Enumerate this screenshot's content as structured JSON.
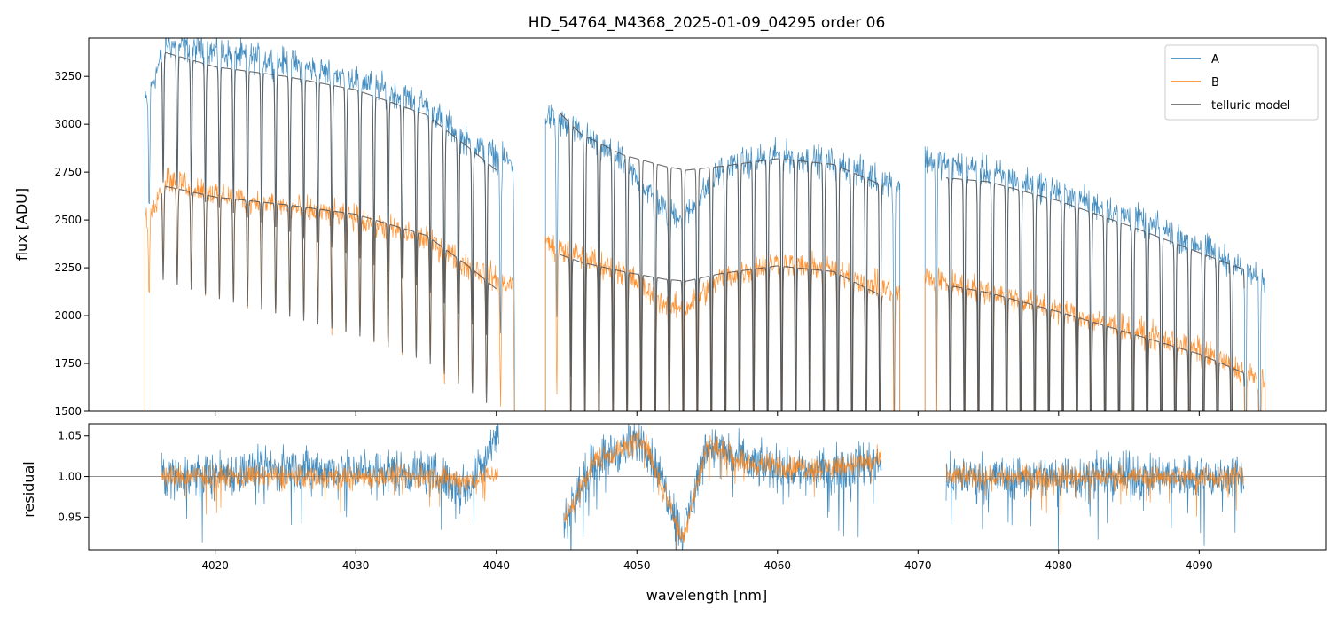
{
  "chart_data": {
    "type": "line",
    "title": "HD_54764_M4368_2025-01-09_04295  order 06",
    "xlabel": "wavelength [nm]",
    "colors": {
      "A": "#1f77b4",
      "B": "#ff7f0e",
      "model": "#555555",
      "ref": "#808080"
    },
    "legend": {
      "placement": "top-right",
      "entries": [
        "A",
        "B",
        "telluric model"
      ]
    },
    "xlim": [
      4011,
      4099
    ],
    "x_ticks": [
      4020,
      4030,
      4040,
      4050,
      4060,
      4070,
      4080,
      4090
    ],
    "x_tick_labels": [
      "4020",
      "4030",
      "4040",
      "4050",
      "4060",
      "4070",
      "4080",
      "4090"
    ],
    "top": {
      "ylabel": "flux [ADU]",
      "ylim": [
        1500,
        3450
      ],
      "y_ticks": [
        1500,
        1750,
        2000,
        2250,
        2500,
        2750,
        3000,
        3250
      ],
      "y_tick_labels": [
        "1500",
        "1750",
        "2000",
        "2250",
        "2500",
        "2750",
        "3000",
        "3250"
      ],
      "segments": [
        [
          4015,
          4041.3
        ],
        [
          4043.5,
          4068.7
        ],
        [
          4070.5,
          4094.7
        ]
      ],
      "absorption_line_spacing_nm": 1.0,
      "series": [
        {
          "name": "A",
          "continuum_x": [
            4015,
            4016.5,
            4020,
            4025,
            4030,
            4035,
            4038,
            4041,
            4043.5,
            4046,
            4049,
            4052,
            4053.5,
            4056,
            4060,
            4064,
            4068.5,
            4070.5,
            4075,
            4080,
            4085,
            4090,
            4094.5
          ],
          "continuum_y": [
            3100,
            3420,
            3380,
            3320,
            3240,
            3100,
            2900,
            2800,
            3050,
            2950,
            2800,
            2550,
            2520,
            2770,
            2840,
            2800,
            2680,
            2820,
            2750,
            2650,
            2520,
            2370,
            2180
          ]
        },
        {
          "name": "B",
          "continuum_x": [
            4015,
            4016.5,
            4020,
            4025,
            4030,
            4035,
            4038,
            4041,
            4043.5,
            4046,
            4049,
            4052,
            4053.5,
            4056,
            4060,
            4064,
            4068.5,
            4070.5,
            4075,
            4080,
            4085,
            4090,
            4094.5
          ],
          "continuum_y": [
            2500,
            2720,
            2640,
            2570,
            2510,
            2400,
            2260,
            2160,
            2380,
            2310,
            2230,
            2060,
            2040,
            2200,
            2280,
            2240,
            2120,
            2200,
            2130,
            2030,
            1930,
            1820,
            1650
          ]
        },
        {
          "name": "telluric model",
          "continuum_x_A": [
            4016.2,
            4020,
            4025,
            4030,
            4035,
            4038,
            4040,
            4044.5,
            4046,
            4049,
            4052,
            4053.5,
            4056,
            4060,
            4064,
            4067.5,
            4072,
            4075,
            4080,
            4085,
            4090,
            4093.2
          ],
          "continuum_y_A": [
            3380,
            3300,
            3250,
            3180,
            3050,
            2880,
            2760,
            3060,
            2950,
            2840,
            2780,
            2760,
            2780,
            2820,
            2790,
            2680,
            2720,
            2700,
            2600,
            2470,
            2330,
            2240
          ],
          "continuum_x_B": [
            4016.2,
            4020,
            4025,
            4030,
            4035,
            4038,
            4040,
            4044.5,
            4046,
            4049,
            4052,
            4053.5,
            4056,
            4060,
            4064,
            4067.5,
            4072,
            4075,
            4080,
            4085,
            4090,
            4093.2
          ],
          "continuum_y_B": [
            2680,
            2620,
            2580,
            2530,
            2420,
            2260,
            2140,
            2320,
            2280,
            2230,
            2190,
            2180,
            2220,
            2260,
            2230,
            2100,
            2160,
            2120,
            2020,
            1910,
            1800,
            1700
          ]
        }
      ]
    },
    "bottom": {
      "ylabel": "residual",
      "ylim": [
        0.91,
        1.065
      ],
      "y_ticks": [
        0.95,
        1.0,
        1.05
      ],
      "y_tick_labels": [
        "0.95",
        "1.00",
        "1.05"
      ],
      "reference_line": 1.0,
      "segments": [
        [
          4016.2,
          4040.2
        ],
        [
          4044.8,
          4067.4
        ],
        [
          4072,
          4093.2
        ]
      ],
      "series": [
        {
          "name": "A",
          "trend_x": [
            4016.2,
            4025,
            4035,
            4038,
            4040.2,
            4044.8,
            4047,
            4050.5,
            4052.5,
            4053.2,
            4055,
            4058,
            4063,
            4067.4,
            4072,
            4093.2
          ],
          "trend_y": [
            1.0,
            1.01,
            1.005,
            0.985,
            1.06,
            0.945,
            1.02,
            1.045,
            0.965,
            0.925,
            1.04,
            1.015,
            1.005,
            1.02,
            1.0,
            1.0
          ],
          "scatter": 0.03
        },
        {
          "name": "B",
          "trend_x": [
            4016.2,
            4025,
            4035,
            4038,
            4040.2,
            4044.8,
            4047,
            4050.5,
            4052.5,
            4053.2,
            4055,
            4058,
            4063,
            4067.4,
            4072,
            4093.2
          ],
          "trend_y": [
            1.0,
            1.0,
            1.0,
            0.995,
            1.005,
            0.945,
            1.02,
            1.045,
            0.96,
            0.92,
            1.04,
            1.015,
            1.01,
            1.02,
            1.0,
            1.0
          ],
          "scatter": 0.016
        }
      ]
    }
  }
}
